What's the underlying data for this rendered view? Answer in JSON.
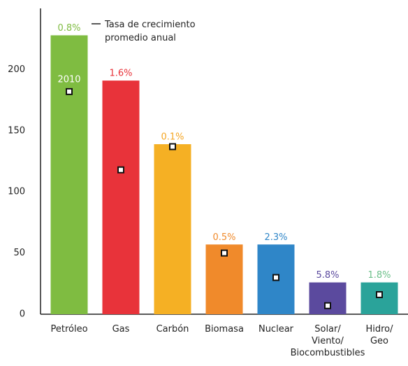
{
  "chart_data": {
    "type": "bar",
    "categories": [
      "Petróleo",
      "Gas",
      "Carbón",
      "Biomasa",
      "Nuclear",
      "Solar/\nViento/\nBiocombustibles",
      "Hidro/\nGeo"
    ],
    "values": [
      228,
      191,
      139,
      57,
      57,
      26,
      26
    ],
    "colors": [
      "#7fbc41",
      "#e8333a",
      "#f5b024",
      "#f08a2b",
      "#2f86c8",
      "#5b4a9e",
      "#2aa39a"
    ],
    "growth_labels": [
      "0.8%",
      "1.6%",
      "0.1%",
      "0.5%",
      "2.3%",
      "5.8%",
      "1.8%"
    ],
    "growth_colors": [
      "#7fbc41",
      "#e8333a",
      "#f5a623",
      "#f08a2b",
      "#2f86c8",
      "#5b4a9e",
      "#6cc08a"
    ],
    "markers": {
      "name": "2010",
      "values": [
        182,
        118,
        137,
        50,
        30,
        7,
        16
      ]
    },
    "legend": "Tasa de crecimiento\npromedio anual",
    "ylim": [
      0,
      250
    ],
    "yticks": [
      0,
      50,
      100,
      150,
      200
    ],
    "grid": false
  }
}
